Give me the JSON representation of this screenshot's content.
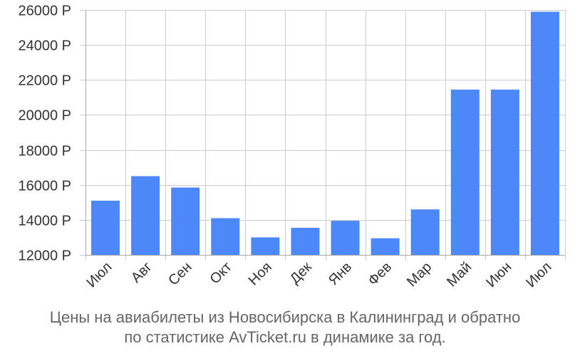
{
  "chart_data": {
    "type": "bar",
    "categories": [
      "Июл",
      "Авг",
      "Сен",
      "Окт",
      "Ноя",
      "Дек",
      "Янв",
      "Фев",
      "Мар",
      "Май",
      "Июн",
      "Июл"
    ],
    "values": [
      15100,
      16500,
      15850,
      14100,
      13000,
      13550,
      13950,
      12950,
      14600,
      21450,
      21450,
      25900
    ],
    "ylim": [
      12000,
      26000
    ],
    "yticks": [
      12000,
      14000,
      16000,
      18000,
      20000,
      22000,
      24000,
      26000
    ],
    "ytick_labels": [
      "12000 Р",
      "14000 Р",
      "16000 Р",
      "18000 Р",
      "20000 Р",
      "22000 Р",
      "24000 Р",
      "26000 Р"
    ],
    "grid": true,
    "bar_color": "#4d88f8",
    "grid_color": "#cccccc",
    "axis_color": "#aaaaaa",
    "label_color": "#333333"
  },
  "caption": {
    "line1": "Цены на авиабилеты из Новосибирска в Калининград и обратно",
    "line2": "по статистике AvTicket.ru в динамике за год."
  }
}
